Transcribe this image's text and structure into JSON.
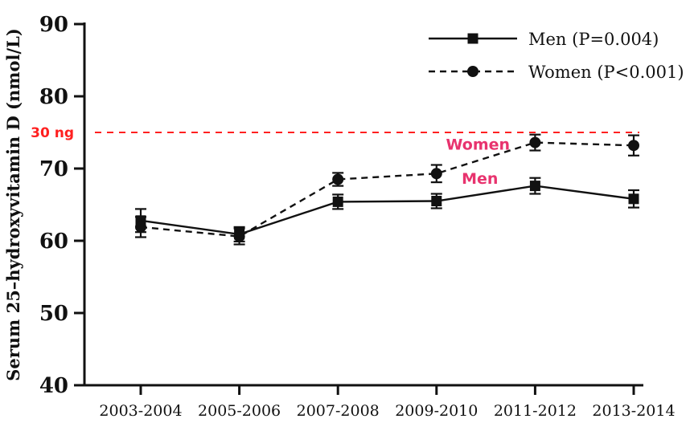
{
  "chart_data": {
    "type": "line",
    "title": "",
    "xlabel": "",
    "ylabel": "Serum 25–hydroxyvitamin D (nmol/L)",
    "ylim": [
      40,
      90
    ],
    "yticks": [
      40,
      50,
      60,
      70,
      80,
      90
    ],
    "grid": false,
    "legend_position": "top-right",
    "categories": [
      "2003-2004",
      "2005-2006",
      "2007-2008",
      "2009-2010",
      "2011-2012",
      "2013-2014"
    ],
    "series": [
      {
        "name": "Men (P=0.004)",
        "marker": "square",
        "line_style": "solid",
        "color": "#111111",
        "values": [
          62.8,
          60.9,
          65.4,
          65.5,
          67.6,
          65.8
        ],
        "errors": [
          1.6,
          1.0,
          1.0,
          1.0,
          1.1,
          1.2
        ]
      },
      {
        "name": "Women (P<0.001)",
        "marker": "circle",
        "line_style": "dashed",
        "color": "#111111",
        "values": [
          61.9,
          60.6,
          68.5,
          69.3,
          73.6,
          73.2
        ],
        "errors": [
          1.4,
          1.1,
          0.9,
          1.2,
          1.1,
          1.4
        ]
      }
    ],
    "reference_line": {
      "value": 75,
      "label": "30 ng",
      "color": "#ff2020",
      "style": "dashed"
    },
    "annotations": [
      {
        "text": "Women",
        "x_index": 3.42,
        "y_value": 72.6,
        "color": "#e8336e"
      },
      {
        "text": "Men",
        "x_index": 3.44,
        "y_value": 67.9,
        "color": "#e8336e"
      }
    ],
    "colors": {
      "axis": "#111111",
      "background": "#ffffff"
    }
  }
}
